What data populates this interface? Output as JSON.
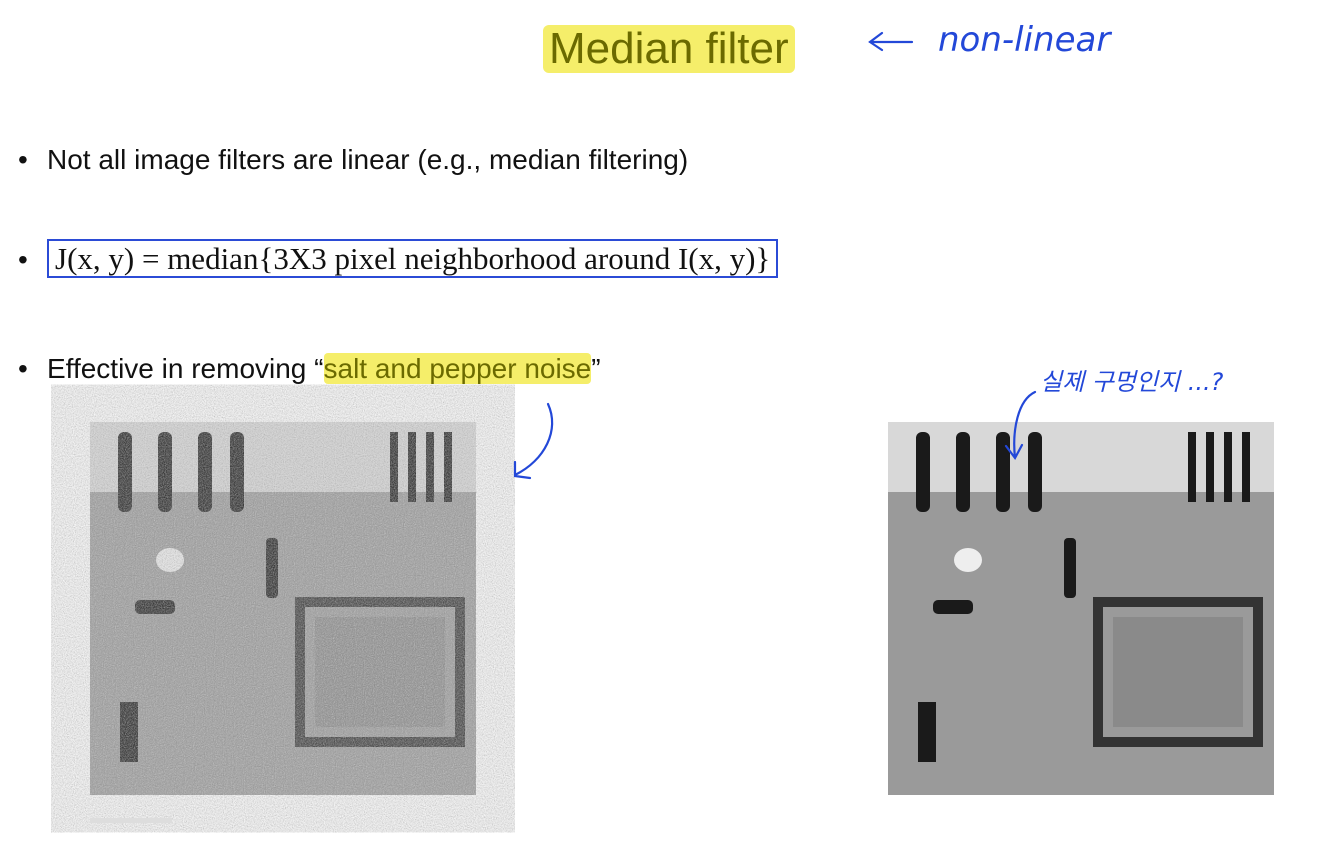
{
  "title": "Median filter",
  "annotations": {
    "title_note": "non-linear",
    "image_note": "실제 구멍인지 ...?"
  },
  "bullets": [
    {
      "text": "Not all image filters are linear (e.g., median filtering)"
    },
    {
      "text": "J(x, y) = median{3X3 pixel neighborhood around I(x, y)}"
    },
    {
      "prefix": "Effective in removing “",
      "highlight": "salt and pepper noise",
      "suffix": "”"
    }
  ]
}
